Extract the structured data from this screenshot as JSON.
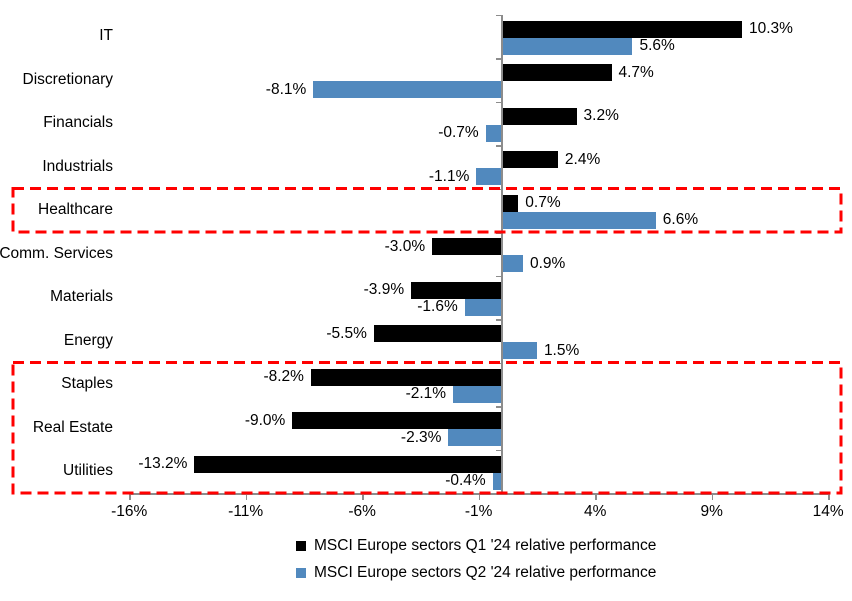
{
  "chart_data": {
    "type": "bar",
    "orientation": "horizontal",
    "title": "",
    "categories": [
      "IT",
      "Discretionary",
      "Financials",
      "Industrials",
      "Healthcare",
      "Comm. Services",
      "Materials",
      "Energy",
      "Staples",
      "Real Estate",
      "Utilities"
    ],
    "series": [
      {
        "name": "MSCI Europe sectors Q1 '24 relative performance",
        "color": "#000000",
        "values": [
          10.3,
          4.7,
          3.2,
          2.4,
          0.7,
          -3.0,
          -3.9,
          -5.5,
          -8.2,
          -9.0,
          -13.2
        ]
      },
      {
        "name": "MSCI Europe sectors Q2 '24 relative performance",
        "color": "#5189BE",
        "values": [
          5.6,
          -8.1,
          -0.7,
          -1.1,
          6.6,
          0.9,
          -1.6,
          1.5,
          -2.1,
          -2.3,
          -0.4
        ]
      }
    ],
    "data_label_format": "0.0%",
    "x_axis": {
      "min": -16,
      "max": 14,
      "unit": "%",
      "ticks": [
        -16,
        -11,
        -6,
        -1,
        4,
        9,
        14
      ],
      "tick_labels": [
        "-16%",
        "-11%",
        "-6%",
        "-1%",
        "4%",
        "9%",
        "14%"
      ]
    },
    "grid": false,
    "legend_position": "bottom",
    "axis_color": "#8c8c8c",
    "highlight_color": "#FF0000",
    "highlights": [
      {
        "name": "healthcare-highlight",
        "category_start": 4,
        "category_end": 4
      },
      {
        "name": "defensives-highlight",
        "category_start": 8,
        "category_end": 10
      }
    ]
  }
}
